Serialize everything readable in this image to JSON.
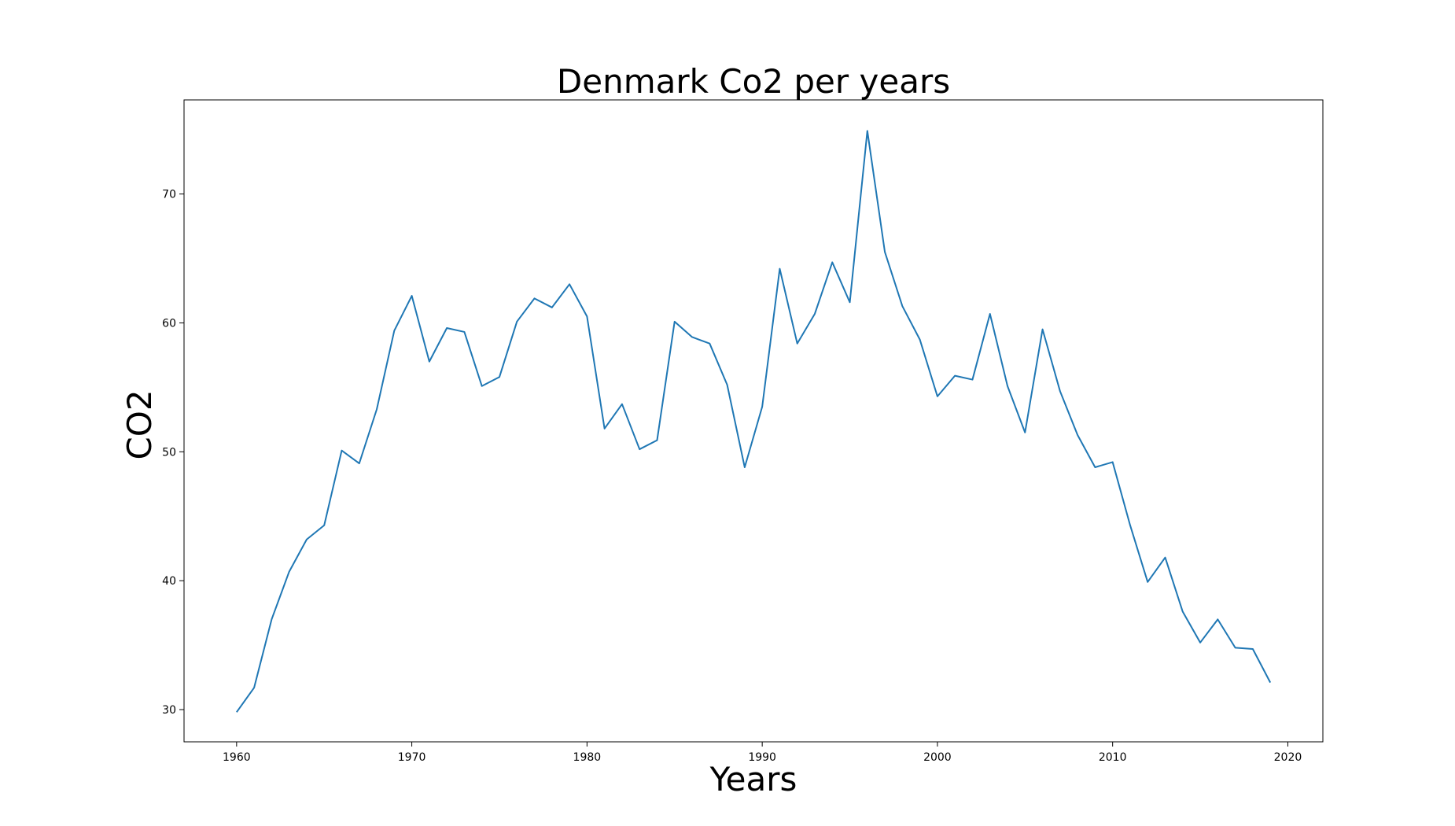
{
  "chart_data": {
    "type": "line",
    "title": "Denmark Co2 per years",
    "xlabel": "Years",
    "ylabel": "CO2",
    "xlim": [
      1957,
      2022
    ],
    "ylim": [
      27.5,
      77.3
    ],
    "x_ticks": [
      1960,
      1970,
      1980,
      1990,
      2000,
      2010,
      2020
    ],
    "y_ticks": [
      30,
      40,
      50,
      60,
      70
    ],
    "grid": false,
    "legend": "none",
    "line_color": "#1f77b4",
    "series": [
      {
        "x": [
          1960,
          1961,
          1962,
          1963,
          1964,
          1965,
          1966,
          1967,
          1968,
          1969,
          1970,
          1971,
          1972,
          1973,
          1974,
          1975,
          1976,
          1977,
          1978,
          1979,
          1980,
          1981,
          1982,
          1983,
          1984,
          1985,
          1986,
          1987,
          1988,
          1989,
          1990,
          1991,
          1992,
          1993,
          1994,
          1995,
          1996,
          1997,
          1998,
          1999,
          2000,
          2001,
          2002,
          2003,
          2004,
          2005,
          2006,
          2007,
          2008,
          2009,
          2010,
          2011,
          2012,
          2013,
          2014,
          2015,
          2016,
          2017,
          2018,
          2019
        ],
        "values": [
          29.8,
          31.7,
          37.0,
          40.7,
          43.2,
          44.3,
          50.1,
          49.1,
          53.3,
          59.4,
          62.1,
          57.0,
          59.6,
          59.3,
          55.1,
          55.8,
          60.1,
          61.9,
          61.2,
          63.0,
          60.5,
          51.8,
          53.7,
          50.2,
          50.9,
          60.1,
          58.9,
          58.4,
          55.2,
          48.8,
          53.5,
          64.2,
          58.4,
          60.7,
          64.7,
          61.6,
          74.9,
          65.5,
          61.3,
          58.7,
          54.3,
          55.9,
          55.6,
          60.7,
          55.1,
          51.5,
          59.5,
          54.7,
          51.3,
          48.8,
          49.2,
          44.3,
          39.9,
          41.8,
          37.6,
          35.2,
          37.0,
          34.8,
          34.7,
          32.1
        ]
      }
    ]
  }
}
